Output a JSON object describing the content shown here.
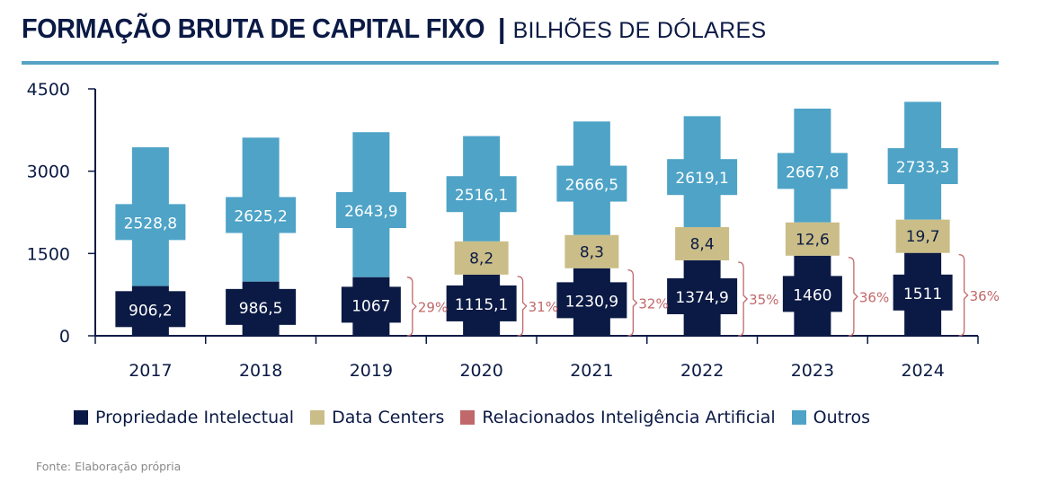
{
  "header": {
    "title_bold": "FORMAÇÃO BRUTA DE CAPITAL FIXO",
    "separator": "|",
    "title_light": "BILHÕES DE DÓLARES"
  },
  "colors": {
    "propriedade": "#0b1a45",
    "data_centers": "#cbbd87",
    "ia": "#c0686a",
    "outros": "#4ea3c7",
    "rule": "#56a4c5"
  },
  "chart_data": {
    "type": "bar",
    "stacked": true,
    "title": "FORMAÇÃO BRUTA DE CAPITAL FIXO | BILHÕES DE DÓLARES",
    "xlabel": "",
    "ylabel": "",
    "ylim": [
      0,
      4500
    ],
    "yticks": [
      0,
      1500,
      3000,
      4500
    ],
    "categories": [
      "2017",
      "2018",
      "2019",
      "2020",
      "2021",
      "2022",
      "2023",
      "2024"
    ],
    "series": [
      {
        "name": "Propriedade Intelectual",
        "values": [
          906.2,
          986.5,
          1067,
          1115.1,
          1230.9,
          1374.9,
          1460,
          1511
        ],
        "labels": [
          "906,2",
          "986,5",
          "1067",
          "1115,1",
          "1230,9",
          "1374,9",
          "1460",
          "1511"
        ]
      },
      {
        "name": "Data Centers",
        "values": [
          null,
          null,
          null,
          8.2,
          8.3,
          8.4,
          12.6,
          19.7
        ],
        "labels": [
          "",
          "",
          "",
          "8,2",
          "8,3",
          "8,4",
          "12,6",
          "19,7"
        ]
      },
      {
        "name": "Relacionados Inteligência Artificial",
        "values": [
          null,
          null,
          29,
          31,
          32,
          35,
          36,
          36
        ],
        "labels": [
          "",
          "",
          "29%",
          "31%",
          "32%",
          "35%",
          "36%",
          "36%"
        ],
        "unit": "%"
      },
      {
        "name": "Outros",
        "values": [
          2528.8,
          2625.2,
          2643.9,
          2516.1,
          2666.5,
          2619.1,
          2667.8,
          2733.3
        ],
        "labels": [
          "2528,8",
          "2625,2",
          "2643,9",
          "2516,1",
          "2666,5",
          "2619,1",
          "2667,8",
          "2733,3"
        ]
      }
    ],
    "grid": false,
    "legend": "bottom"
  },
  "legend": [
    {
      "label": "Propriedade Intelectual",
      "color": "#0b1a45"
    },
    {
      "label": "Data Centers",
      "color": "#cbbd87"
    },
    {
      "label": "Relacionados Inteligência Artificial",
      "color": "#c0686a"
    },
    {
      "label": "Outros",
      "color": "#4ea3c7"
    }
  ],
  "footer": {
    "source": "Fonte: Elaboração própria"
  }
}
